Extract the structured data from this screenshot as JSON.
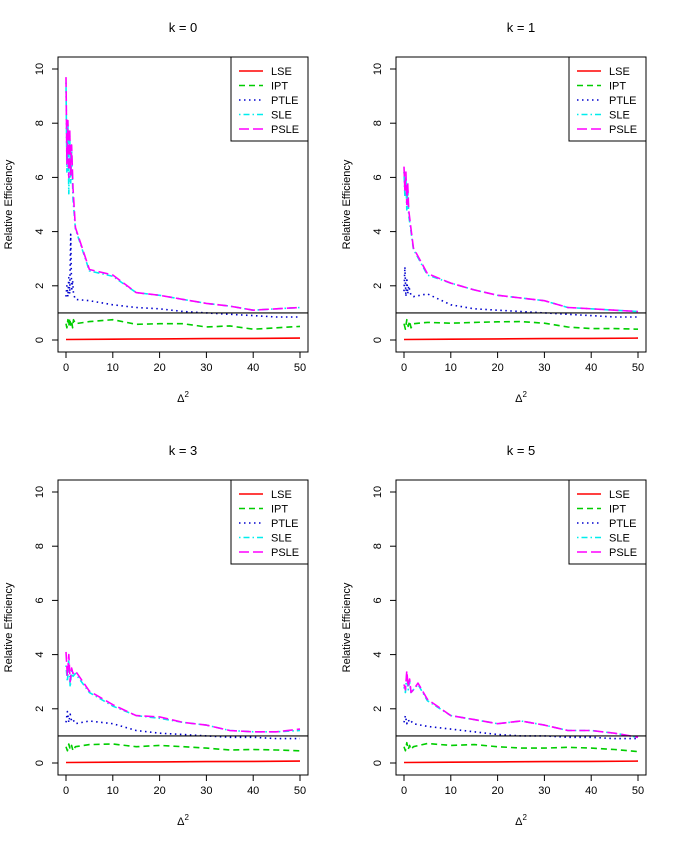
{
  "chart_data": [
    {
      "type": "line",
      "title": "k = 0",
      "xlabel": "Δ",
      "xlabel_superscript": "2",
      "ylabel": "Relative Efficiency",
      "xlim": [
        0,
        50
      ],
      "ylim": [
        0,
        10
      ],
      "xticks": [
        0,
        10,
        20,
        30,
        40,
        50
      ],
      "yticks": [
        0,
        2,
        4,
        6,
        8,
        10
      ],
      "reference_line": 1,
      "legend_position": "top-right",
      "series": [
        {
          "name": "LSE",
          "color": "#ff0000",
          "dash": "solid",
          "x": [
            0,
            10,
            20,
            30,
            40,
            50
          ],
          "y": [
            0.02,
            0.03,
            0.04,
            0.05,
            0.06,
            0.07
          ]
        },
        {
          "name": "IPT",
          "color": "#00cd00",
          "dash": "dashed",
          "x": [
            0,
            0.2,
            0.4,
            0.6,
            0.8,
            1.0,
            1.2,
            1.4,
            1.6,
            2,
            5,
            10,
            15,
            20,
            25,
            30,
            35,
            40,
            45,
            50
          ],
          "y": [
            0.6,
            0.45,
            0.75,
            0.5,
            0.8,
            0.55,
            0.7,
            0.45,
            0.75,
            0.6,
            0.68,
            0.75,
            0.58,
            0.6,
            0.6,
            0.48,
            0.52,
            0.4,
            0.45,
            0.5
          ]
        },
        {
          "name": "PTLE",
          "color": "#0000cd",
          "dash": "dotted",
          "x": [
            0,
            0.2,
            0.4,
            0.6,
            0.8,
            1.0,
            1.2,
            1.4,
            1.6,
            2,
            5,
            10,
            15,
            20,
            25,
            30,
            35,
            40,
            45,
            50
          ],
          "y": [
            1.6,
            2.0,
            1.6,
            2.3,
            1.7,
            3.9,
            1.8,
            2.2,
            1.7,
            1.5,
            1.45,
            1.3,
            1.2,
            1.15,
            1.05,
            1.0,
            0.95,
            0.9,
            0.85,
            0.85
          ]
        },
        {
          "name": "SLE",
          "color": "#00eeee",
          "dash": "dashdot",
          "x": [
            0,
            0.2,
            0.4,
            0.6,
            0.8,
            1.0,
            1.2,
            1.5,
            2,
            5,
            10,
            15,
            20,
            25,
            30,
            35,
            40,
            45,
            50
          ],
          "y": [
            9.5,
            6.2,
            8.0,
            5.4,
            7.6,
            5.8,
            7.0,
            5.2,
            4.1,
            2.55,
            2.35,
            1.75,
            1.65,
            1.5,
            1.35,
            1.25,
            1.1,
            1.15,
            1.2
          ]
        },
        {
          "name": "PSLE",
          "color": "#ff00ff",
          "dash": "longdash",
          "x": [
            0,
            0.2,
            0.4,
            0.6,
            0.8,
            1.0,
            1.2,
            1.5,
            2,
            5,
            10,
            15,
            20,
            25,
            30,
            35,
            40,
            45,
            50
          ],
          "y": [
            9.7,
            6.5,
            8.1,
            6.0,
            7.8,
            6.1,
            7.2,
            5.6,
            4.15,
            2.6,
            2.4,
            1.75,
            1.65,
            1.5,
            1.35,
            1.25,
            1.1,
            1.15,
            1.2
          ]
        }
      ]
    },
    {
      "type": "line",
      "title": "k = 1",
      "xlabel": "Δ",
      "xlabel_superscript": "2",
      "ylabel": "Relative Efficiency",
      "xlim": [
        0,
        50
      ],
      "ylim": [
        0,
        10
      ],
      "xticks": [
        0,
        10,
        20,
        30,
        40,
        50
      ],
      "yticks": [
        0,
        2,
        4,
        6,
        8,
        10
      ],
      "reference_line": 1,
      "legend_position": "top-right",
      "series": [
        {
          "name": "LSE",
          "color": "#ff0000",
          "dash": "solid",
          "x": [
            0,
            10,
            20,
            30,
            40,
            50
          ],
          "y": [
            0.02,
            0.03,
            0.04,
            0.05,
            0.06,
            0.07
          ]
        },
        {
          "name": "IPT",
          "color": "#00cd00",
          "dash": "dashed",
          "x": [
            0,
            0.3,
            0.6,
            0.9,
            1.2,
            1.5,
            2,
            5,
            10,
            15,
            20,
            25,
            30,
            35,
            40,
            45,
            50
          ],
          "y": [
            0.6,
            0.4,
            0.75,
            0.5,
            0.7,
            0.45,
            0.6,
            0.65,
            0.62,
            0.65,
            0.67,
            0.68,
            0.62,
            0.48,
            0.42,
            0.42,
            0.4
          ]
        },
        {
          "name": "PTLE",
          "color": "#0000cd",
          "dash": "dotted",
          "x": [
            0,
            0.2,
            0.4,
            0.6,
            0.8,
            1.0,
            1.5,
            2,
            5,
            10,
            15,
            20,
            25,
            30,
            35,
            40,
            45,
            50
          ],
          "y": [
            1.8,
            2.7,
            1.6,
            2.3,
            1.7,
            2.0,
            1.65,
            1.6,
            1.7,
            1.3,
            1.15,
            1.1,
            1.05,
            1.0,
            0.95,
            0.9,
            0.85,
            0.85
          ]
        },
        {
          "name": "SLE",
          "color": "#00eeee",
          "dash": "dashdot",
          "x": [
            0,
            0.2,
            0.4,
            0.6,
            0.8,
            1.0,
            1.5,
            2,
            5,
            10,
            15,
            20,
            25,
            30,
            35,
            40,
            45,
            50
          ],
          "y": [
            6.2,
            5.3,
            6.0,
            4.8,
            5.6,
            4.6,
            4.0,
            3.35,
            2.4,
            2.1,
            1.85,
            1.65,
            1.55,
            1.45,
            1.2,
            1.15,
            1.1,
            1.05
          ]
        },
        {
          "name": "PSLE",
          "color": "#ff00ff",
          "dash": "longdash",
          "x": [
            0,
            0.2,
            0.4,
            0.6,
            0.8,
            1.0,
            1.5,
            2,
            5,
            10,
            15,
            20,
            25,
            30,
            35,
            40,
            45,
            50
          ],
          "y": [
            6.4,
            5.5,
            6.2,
            5.0,
            5.8,
            4.8,
            4.1,
            3.4,
            2.45,
            2.1,
            1.85,
            1.65,
            1.55,
            1.45,
            1.2,
            1.15,
            1.1,
            1.05
          ]
        }
      ]
    },
    {
      "type": "line",
      "title": "k = 3",
      "xlabel": "Δ",
      "xlabel_superscript": "2",
      "ylabel": "Relative Efficiency",
      "xlim": [
        0,
        50
      ],
      "ylim": [
        0,
        10
      ],
      "xticks": [
        0,
        10,
        20,
        30,
        40,
        50
      ],
      "yticks": [
        0,
        2,
        4,
        6,
        8,
        10
      ],
      "reference_line": 1,
      "legend_position": "top-right",
      "series": [
        {
          "name": "LSE",
          "color": "#ff0000",
          "dash": "solid",
          "x": [
            0,
            10,
            20,
            30,
            40,
            50
          ],
          "y": [
            0.02,
            0.03,
            0.04,
            0.05,
            0.06,
            0.07
          ]
        },
        {
          "name": "IPT",
          "color": "#00cd00",
          "dash": "dashed",
          "x": [
            0,
            0.3,
            0.6,
            0.9,
            1.2,
            1.5,
            2,
            5,
            10,
            15,
            20,
            25,
            30,
            35,
            40,
            45,
            50
          ],
          "y": [
            0.6,
            0.45,
            0.7,
            0.5,
            0.65,
            0.45,
            0.6,
            0.68,
            0.7,
            0.6,
            0.65,
            0.6,
            0.55,
            0.48,
            0.5,
            0.48,
            0.45
          ]
        },
        {
          "name": "PTLE",
          "color": "#0000cd",
          "dash": "dotted",
          "x": [
            0,
            0.3,
            0.6,
            0.9,
            1.2,
            1.5,
            2,
            5,
            10,
            15,
            20,
            25,
            30,
            35,
            40,
            45,
            50
          ],
          "y": [
            1.5,
            1.9,
            1.5,
            1.8,
            1.55,
            1.6,
            1.45,
            1.55,
            1.45,
            1.2,
            1.1,
            1.05,
            1.0,
            0.95,
            0.95,
            0.9,
            0.9
          ]
        },
        {
          "name": "SLE",
          "color": "#00eeee",
          "dash": "dashdot",
          "x": [
            0,
            0.3,
            0.6,
            0.9,
            1.2,
            1.5,
            2,
            5,
            10,
            15,
            20,
            25,
            30,
            35,
            40,
            45,
            50
          ],
          "y": [
            3.6,
            3.0,
            3.8,
            2.8,
            3.4,
            3.2,
            3.3,
            2.6,
            2.1,
            1.75,
            1.65,
            1.5,
            1.4,
            1.2,
            1.15,
            1.15,
            1.2
          ]
        },
        {
          "name": "PSLE",
          "color": "#ff00ff",
          "dash": "longdash",
          "x": [
            0,
            0.3,
            0.6,
            0.9,
            1.2,
            1.5,
            2,
            5,
            10,
            15,
            20,
            25,
            30,
            35,
            40,
            45,
            50
          ],
          "y": [
            4.1,
            3.2,
            4.0,
            3.0,
            3.5,
            3.3,
            3.4,
            2.65,
            2.15,
            1.75,
            1.7,
            1.5,
            1.4,
            1.2,
            1.15,
            1.15,
            1.25
          ]
        }
      ]
    },
    {
      "type": "line",
      "title": "k = 5",
      "xlabel": "Δ",
      "xlabel_superscript": "2",
      "ylabel": "Relative Efficiency",
      "xlim": [
        0,
        50
      ],
      "ylim": [
        0,
        10
      ],
      "xticks": [
        0,
        10,
        20,
        30,
        40,
        50
      ],
      "yticks": [
        0,
        2,
        4,
        6,
        8,
        10
      ],
      "reference_line": 1,
      "legend_position": "top-right",
      "series": [
        {
          "name": "LSE",
          "color": "#ff0000",
          "dash": "solid",
          "x": [
            0,
            10,
            20,
            30,
            40,
            50
          ],
          "y": [
            0.02,
            0.03,
            0.04,
            0.05,
            0.06,
            0.07
          ]
        },
        {
          "name": "IPT",
          "color": "#00cd00",
          "dash": "dashed",
          "x": [
            0,
            0.3,
            0.6,
            0.9,
            1.2,
            1.5,
            2,
            5,
            10,
            15,
            20,
            25,
            30,
            35,
            40,
            45,
            50
          ],
          "y": [
            0.6,
            0.45,
            0.75,
            0.5,
            0.65,
            0.5,
            0.6,
            0.72,
            0.65,
            0.68,
            0.6,
            0.55,
            0.55,
            0.58,
            0.55,
            0.5,
            0.42
          ]
        },
        {
          "name": "PTLE",
          "color": "#0000cd",
          "dash": "dotted",
          "x": [
            0,
            0.3,
            0.6,
            0.9,
            1.2,
            1.5,
            2,
            5,
            10,
            15,
            20,
            25,
            30,
            35,
            40,
            45,
            50
          ],
          "y": [
            1.5,
            1.75,
            1.45,
            1.6,
            1.5,
            1.55,
            1.45,
            1.35,
            1.25,
            1.15,
            1.05,
            1.0,
            1.0,
            0.95,
            0.95,
            0.9,
            0.9
          ]
        },
        {
          "name": "SLE",
          "color": "#00eeee",
          "dash": "dashdot",
          "x": [
            0,
            0.3,
            0.6,
            0.9,
            1.2,
            1.5,
            2,
            3,
            5,
            10,
            15,
            20,
            25,
            30,
            35,
            40,
            45,
            50
          ],
          "y": [
            2.8,
            2.6,
            3.3,
            2.7,
            3.0,
            2.6,
            2.7,
            2.9,
            2.3,
            1.75,
            1.6,
            1.45,
            1.55,
            1.4,
            1.2,
            1.2,
            1.1,
            0.95
          ]
        },
        {
          "name": "PSLE",
          "color": "#ff00ff",
          "dash": "longdash",
          "x": [
            0,
            0.3,
            0.6,
            0.9,
            1.2,
            1.5,
            2,
            3,
            5,
            10,
            15,
            20,
            25,
            30,
            35,
            40,
            45,
            50
          ],
          "y": [
            2.9,
            2.7,
            3.4,
            2.8,
            3.1,
            2.6,
            2.7,
            2.95,
            2.35,
            1.75,
            1.6,
            1.45,
            1.55,
            1.4,
            1.2,
            1.2,
            1.1,
            0.95
          ]
        }
      ]
    }
  ]
}
